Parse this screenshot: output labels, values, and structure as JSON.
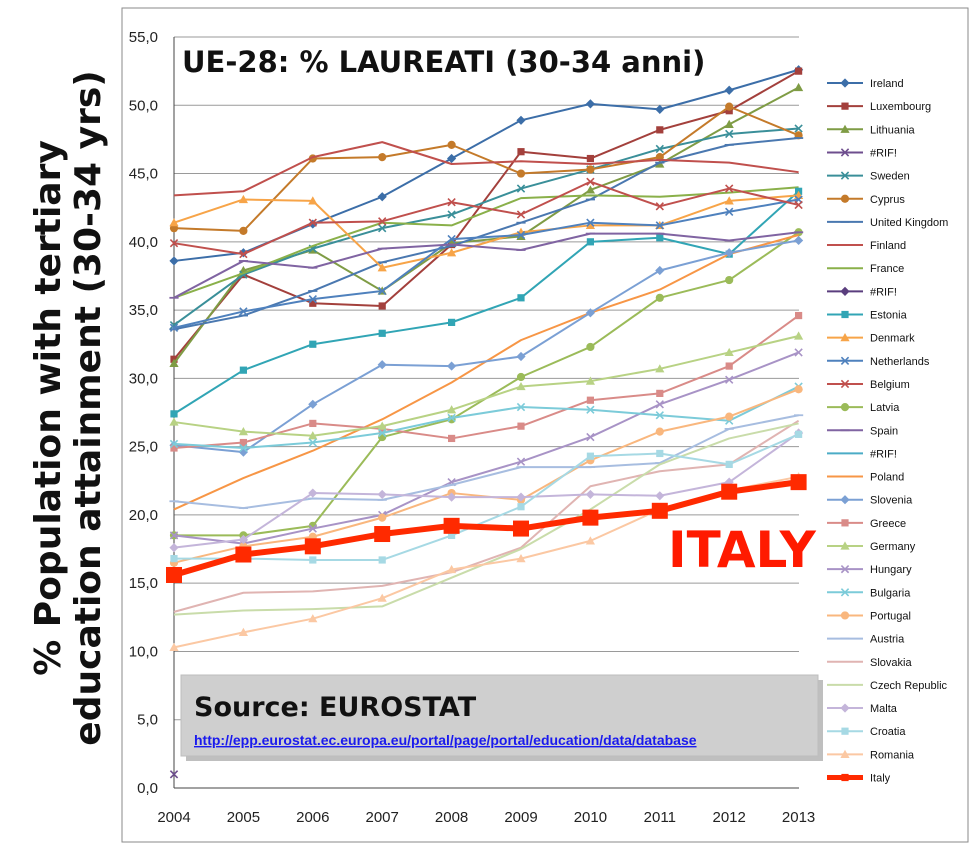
{
  "chart_data": {
    "type": "line",
    "title": "UE-28: % LAUREATI (30-34 anni)",
    "ylabel_line1": "% Population with tertiary",
    "ylabel_line2": "education attainment (30-34 yrs)",
    "ylim": [
      0,
      55
    ],
    "yticks": [
      "0,0",
      "5,0",
      "10,0",
      "15,0",
      "20,0",
      "25,0",
      "30,0",
      "35,0",
      "40,0",
      "45,0",
      "50,0",
      "55,0"
    ],
    "categories": [
      "2004",
      "2005",
      "2006",
      "2007",
      "2008",
      "2009",
      "2010",
      "2011",
      "2012",
      "2013"
    ],
    "grid": true,
    "legend_position": "right",
    "highlight_label": "ITALY",
    "source_title": "Source: EUROSTAT",
    "source_link": "http://epp.eurostat.ec.europa.eu/portal/page/portal/education/data/database",
    "series": [
      {
        "name": "Ireland",
        "color": "#3c6ea8",
        "marker": "diamond",
        "values": [
          38.6,
          39.2,
          41.3,
          43.3,
          46.1,
          48.9,
          50.1,
          49.7,
          51.1,
          52.6
        ]
      },
      {
        "name": "Luxembourg",
        "color": "#a3403c",
        "marker": "square",
        "values": [
          31.4,
          37.6,
          35.5,
          35.3,
          39.8,
          46.6,
          46.1,
          48.2,
          49.6,
          52.5
        ]
      },
      {
        "name": "Lithuania",
        "color": "#7f9c45",
        "marker": "triangle",
        "values": [
          31.1,
          37.9,
          39.4,
          36.4,
          39.9,
          40.4,
          43.8,
          45.7,
          48.6,
          51.3
        ]
      },
      {
        "name": "#RIF!",
        "color": "#6e4e8e",
        "marker": "x",
        "values": [
          1.0,
          null,
          null,
          null,
          null,
          null,
          null,
          null,
          null,
          null
        ]
      },
      {
        "name": "Sweden",
        "color": "#3a8f99",
        "marker": "x",
        "values": [
          33.9,
          37.6,
          39.5,
          41.0,
          42.0,
          43.9,
          45.3,
          46.8,
          47.9,
          48.3
        ]
      },
      {
        "name": "Cyprus",
        "color": "#c47a2a",
        "marker": "circle",
        "values": [
          41.0,
          40.8,
          46.1,
          46.2,
          47.1,
          45.0,
          45.3,
          46.2,
          49.9,
          47.8
        ]
      },
      {
        "name": "United Kingdom",
        "color": "#4a78b0",
        "marker": "plus",
        "values": [
          33.6,
          34.6,
          36.4,
          38.5,
          39.7,
          41.4,
          43.1,
          45.8,
          47.1,
          47.6
        ]
      },
      {
        "name": "Finland",
        "color": "#c0504d",
        "marker": "line",
        "values": [
          43.4,
          43.7,
          46.2,
          47.3,
          45.7,
          45.9,
          45.7,
          46.0,
          45.8,
          45.1
        ]
      },
      {
        "name": "France",
        "color": "#8ab04a",
        "marker": "line",
        "values": [
          35.9,
          37.7,
          39.7,
          41.4,
          41.2,
          43.2,
          43.4,
          43.3,
          43.6,
          44.0
        ]
      },
      {
        "name": "#RIF!",
        "color": "#5a3e7e",
        "marker": "diamond",
        "values": [
          null,
          null,
          null,
          null,
          null,
          null,
          null,
          null,
          null,
          null
        ]
      },
      {
        "name": "Estonia",
        "color": "#31a5b5",
        "marker": "square",
        "values": [
          27.4,
          30.6,
          32.5,
          33.3,
          34.1,
          35.9,
          40.0,
          40.3,
          39.1,
          43.7
        ]
      },
      {
        "name": "Denmark",
        "color": "#f7a448",
        "marker": "triangle",
        "values": [
          41.4,
          43.1,
          43.0,
          38.1,
          39.2,
          40.7,
          41.2,
          41.2,
          43.0,
          43.4
        ]
      },
      {
        "name": "Netherlands",
        "color": "#4f81bd",
        "marker": "x",
        "values": [
          33.7,
          34.9,
          35.8,
          36.4,
          40.2,
          40.5,
          41.4,
          41.2,
          42.2,
          43.1
        ]
      },
      {
        "name": "Belgium",
        "color": "#c0504d",
        "marker": "x",
        "values": [
          39.9,
          39.1,
          41.4,
          41.5,
          42.9,
          42.0,
          44.4,
          42.6,
          43.9,
          42.7
        ]
      },
      {
        "name": "Latvia",
        "color": "#9bbb59",
        "marker": "circle",
        "values": [
          18.5,
          18.5,
          19.2,
          25.7,
          27.0,
          30.1,
          32.3,
          35.9,
          37.2,
          40.7
        ]
      },
      {
        "name": "Spain",
        "color": "#8064a2",
        "marker": "plus",
        "values": [
          35.9,
          38.6,
          38.1,
          39.5,
          39.8,
          39.4,
          40.6,
          40.6,
          40.1,
          40.7
        ]
      },
      {
        "name": "#RIF!",
        "color": "#4bacc6",
        "marker": "line",
        "values": [
          null,
          null,
          null,
          null,
          null,
          null,
          null,
          null,
          null,
          null
        ]
      },
      {
        "name": "Poland",
        "color": "#f79646",
        "marker": "line",
        "values": [
          20.4,
          22.7,
          24.7,
          27.0,
          29.7,
          32.8,
          34.8,
          36.5,
          39.1,
          40.5
        ]
      },
      {
        "name": "Slovenia",
        "color": "#7ba0d4",
        "marker": "diamond",
        "values": [
          25.1,
          24.6,
          28.1,
          31.0,
          30.9,
          31.6,
          34.8,
          37.9,
          39.2,
          40.1
        ]
      },
      {
        "name": "Greece",
        "color": "#d98b88",
        "marker": "square",
        "values": [
          24.9,
          25.3,
          26.7,
          26.3,
          25.6,
          26.5,
          28.4,
          28.9,
          30.9,
          34.6
        ]
      },
      {
        "name": "Germany",
        "color": "#b8d284",
        "marker": "triangle",
        "values": [
          26.8,
          26.1,
          25.8,
          26.5,
          27.7,
          29.4,
          29.8,
          30.7,
          31.9,
          33.1
        ]
      },
      {
        "name": "Hungary",
        "color": "#a893c6",
        "marker": "x",
        "values": [
          18.5,
          17.9,
          19.0,
          20.0,
          22.4,
          23.9,
          25.7,
          28.1,
          29.9,
          31.9
        ]
      },
      {
        "name": "Bulgaria",
        "color": "#7ccbd9",
        "marker": "x",
        "values": [
          25.2,
          24.9,
          25.3,
          26.0,
          27.1,
          27.9,
          27.7,
          27.3,
          26.9,
          29.4
        ]
      },
      {
        "name": "Portugal",
        "color": "#f9b77e",
        "marker": "circle",
        "values": [
          16.5,
          17.7,
          18.4,
          19.8,
          21.6,
          21.1,
          24.0,
          26.1,
          27.2,
          29.2
        ]
      },
      {
        "name": "Austria",
        "color": "#a7bde0",
        "marker": "plus",
        "values": [
          21.0,
          20.5,
          21.2,
          21.1,
          22.2,
          23.5,
          23.5,
          23.8,
          26.3,
          27.3
        ]
      },
      {
        "name": "Slovakia",
        "color": "#e0b4b2",
        "marker": "line",
        "values": [
          12.9,
          14.3,
          14.4,
          14.8,
          15.8,
          17.6,
          22.1,
          23.2,
          23.7,
          26.9
        ]
      },
      {
        "name": "Czech Republic",
        "color": "#c9dcaa",
        "marker": "line",
        "values": [
          12.7,
          13.0,
          13.1,
          13.3,
          15.4,
          17.5,
          20.4,
          23.7,
          25.6,
          26.7
        ]
      },
      {
        "name": "Malta",
        "color": "#c4b5da",
        "marker": "diamond",
        "values": [
          17.6,
          18.2,
          21.6,
          21.5,
          21.3,
          21.3,
          21.5,
          21.4,
          22.4,
          26.0
        ]
      },
      {
        "name": "Croatia",
        "color": "#a6d9e4",
        "marker": "square",
        "values": [
          16.8,
          16.8,
          16.7,
          16.7,
          18.5,
          20.6,
          24.3,
          24.5,
          23.7,
          25.9
        ]
      },
      {
        "name": "Romania",
        "color": "#fbc8a3",
        "marker": "triangle",
        "values": [
          10.3,
          11.4,
          12.4,
          13.9,
          16.0,
          16.8,
          18.1,
          20.4,
          21.8,
          22.8
        ]
      },
      {
        "name": "Italy",
        "color": "#ff2a00",
        "marker": "square",
        "values": [
          15.6,
          17.1,
          17.7,
          18.6,
          19.2,
          19.0,
          19.8,
          20.3,
          21.7,
          22.4
        ]
      }
    ]
  }
}
